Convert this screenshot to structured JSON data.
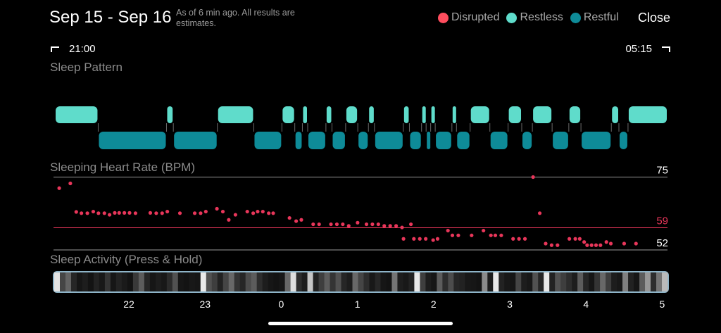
{
  "header": {
    "title": "Sep 15 - Sep 16",
    "subtitle": "As of 6 min ago. All results are estimates.",
    "close_label": "Close"
  },
  "legend": [
    {
      "label": "Disrupted",
      "color": "#ff4d5e"
    },
    {
      "label": "Restless",
      "color": "#5fdccb"
    },
    {
      "label": "Restful",
      "color": "#0e8b98"
    }
  ],
  "time_range": {
    "start": "21:00",
    "end": "05:15"
  },
  "sections": {
    "pattern": "Sleep Pattern",
    "heart_rate": "Sleeping Heart Rate (BPM)",
    "activity": "Sleep Activity (Press & Hold)"
  },
  "colors": {
    "restless": "#5fdccb",
    "restful": "#0e8b98",
    "disrupted": "#ff4d5e",
    "hr_dot": "#e8365a"
  },
  "chart_data": [
    {
      "type": "timeline",
      "name": "Sleep Pattern",
      "x_unit": "hours since midnight (negative = before midnight)",
      "xlim": [
        -2.85,
        5.22
      ],
      "segments": [
        {
          "state": "restless",
          "start": -2.85,
          "end": -2.28
        },
        {
          "state": "restful",
          "start": -2.28,
          "end": -1.38
        },
        {
          "state": "restless",
          "start": -1.38,
          "end": -1.29
        },
        {
          "state": "restful",
          "start": -1.29,
          "end": -0.71
        },
        {
          "state": "restless",
          "start": -0.71,
          "end": -0.23
        },
        {
          "state": "restful",
          "start": -0.23,
          "end": 0.14
        },
        {
          "state": "restless",
          "start": 0.14,
          "end": 0.31
        },
        {
          "state": "restful",
          "start": 0.31,
          "end": 0.41
        },
        {
          "state": "restless",
          "start": 0.41,
          "end": 0.48
        },
        {
          "state": "restful",
          "start": 0.48,
          "end": 0.72
        },
        {
          "state": "restless",
          "start": 0.72,
          "end": 0.8
        },
        {
          "state": "restful",
          "start": 0.8,
          "end": 0.98
        },
        {
          "state": "restless",
          "start": 0.98,
          "end": 1.14
        },
        {
          "state": "restful",
          "start": 1.14,
          "end": 1.28
        },
        {
          "state": "restless",
          "start": 1.28,
          "end": 1.36
        },
        {
          "state": "restful",
          "start": 1.36,
          "end": 1.74
        },
        {
          "state": "restless",
          "start": 1.74,
          "end": 1.82
        },
        {
          "state": "restful",
          "start": 1.82,
          "end": 1.98
        },
        {
          "state": "restless",
          "start": 1.98,
          "end": 2.04
        },
        {
          "state": "restful",
          "start": 2.04,
          "end": 2.1
        },
        {
          "state": "restless",
          "start": 2.1,
          "end": 2.16
        },
        {
          "state": "restful",
          "start": 2.16,
          "end": 2.38
        },
        {
          "state": "restless",
          "start": 2.38,
          "end": 2.44
        },
        {
          "state": "restful",
          "start": 2.44,
          "end": 2.62
        },
        {
          "state": "restless",
          "start": 2.62,
          "end": 2.88
        },
        {
          "state": "restful",
          "start": 2.88,
          "end": 3.12
        },
        {
          "state": "restless",
          "start": 3.12,
          "end": 3.3
        },
        {
          "state": "restful",
          "start": 3.3,
          "end": 3.44
        },
        {
          "state": "restless",
          "start": 3.44,
          "end": 3.7
        },
        {
          "state": "restful",
          "start": 3.7,
          "end": 3.92
        },
        {
          "state": "restless",
          "start": 3.92,
          "end": 4.08
        },
        {
          "state": "restful",
          "start": 4.08,
          "end": 4.48
        },
        {
          "state": "restless",
          "start": 4.48,
          "end": 4.58
        },
        {
          "state": "restful",
          "start": 4.58,
          "end": 4.7
        },
        {
          "state": "restless",
          "start": 4.7,
          "end": 5.22
        }
      ]
    },
    {
      "type": "scatter",
      "name": "Sleeping Heart Rate (BPM)",
      "x_unit": "hours since midnight",
      "xlim": [
        -2.95,
        5.0
      ],
      "ylim": [
        50,
        78
      ],
      "reference_lines": [
        {
          "value": 75,
          "label": "75",
          "color": "#9a9a9a"
        },
        {
          "value": 59,
          "label": "59",
          "color": "#e8365a"
        },
        {
          "value": 52,
          "label": "52",
          "color": "#9a9a9a"
        }
      ],
      "points": [
        [
          -2.93,
          71.5
        ],
        [
          -2.78,
          73
        ],
        [
          -2.7,
          64
        ],
        [
          -2.63,
          63.6
        ],
        [
          -2.55,
          63.6
        ],
        [
          -2.47,
          64.1
        ],
        [
          -2.4,
          63.6
        ],
        [
          -2.32,
          63.6
        ],
        [
          -2.25,
          63.1
        ],
        [
          -2.18,
          63.7
        ],
        [
          -2.12,
          63.7
        ],
        [
          -2.05,
          63.7
        ],
        [
          -1.98,
          63.7
        ],
        [
          -1.9,
          63.6
        ],
        [
          -1.7,
          63.7
        ],
        [
          -1.62,
          63.6
        ],
        [
          -1.54,
          63.6
        ],
        [
          -1.47,
          64.1
        ],
        [
          -1.3,
          63.6
        ],
        [
          -1.1,
          63.6
        ],
        [
          -1.02,
          63.6
        ],
        [
          -0.95,
          64.1
        ],
        [
          -0.8,
          65
        ],
        [
          -0.72,
          64.1
        ],
        [
          -0.64,
          61.5
        ],
        [
          -0.55,
          63.1
        ],
        [
          -0.39,
          64.1
        ],
        [
          -0.31,
          63.6
        ],
        [
          -0.25,
          64.1
        ],
        [
          -0.18,
          64.1
        ],
        [
          -0.1,
          63.6
        ],
        [
          -0.04,
          63.6
        ],
        [
          0.18,
          62.1
        ],
        [
          0.27,
          61.1
        ],
        [
          0.34,
          61.5
        ],
        [
          0.5,
          60.1
        ],
        [
          0.58,
          60.1
        ],
        [
          0.74,
          60.1
        ],
        [
          0.82,
          60.1
        ],
        [
          0.9,
          60.1
        ],
        [
          0.98,
          59.6
        ],
        [
          1.1,
          60.6
        ],
        [
          1.22,
          60.1
        ],
        [
          1.3,
          60.1
        ],
        [
          1.38,
          60.1
        ],
        [
          1.46,
          59.6
        ],
        [
          1.54,
          59.6
        ],
        [
          1.62,
          59.6
        ],
        [
          1.7,
          59.1
        ],
        [
          1.82,
          60.1
        ],
        [
          1.72,
          55.5
        ],
        [
          1.86,
          55.5
        ],
        [
          1.94,
          55.5
        ],
        [
          2.02,
          55.5
        ],
        [
          2.12,
          55.1
        ],
        [
          2.18,
          55.5
        ],
        [
          2.32,
          58.1
        ],
        [
          2.38,
          56.6
        ],
        [
          2.46,
          56.6
        ],
        [
          2.64,
          56.6
        ],
        [
          2.8,
          58.1
        ],
        [
          2.9,
          56.6
        ],
        [
          2.96,
          56.6
        ],
        [
          3.04,
          56.6
        ],
        [
          3.2,
          55.5
        ],
        [
          3.28,
          55.5
        ],
        [
          3.36,
          55.5
        ],
        [
          3.47,
          75
        ],
        [
          3.56,
          63.6
        ],
        [
          3.64,
          54.0
        ],
        [
          3.72,
          53.5
        ],
        [
          3.8,
          53.5
        ],
        [
          3.96,
          55.5
        ],
        [
          4.04,
          55.5
        ],
        [
          4.1,
          55.5
        ],
        [
          4.16,
          54.5
        ],
        [
          4.2,
          53.5
        ],
        [
          4.26,
          53.5
        ],
        [
          4.32,
          53.5
        ],
        [
          4.38,
          53.5
        ],
        [
          4.46,
          54.5
        ],
        [
          4.52,
          54.0
        ],
        [
          4.7,
          54.0
        ],
        [
          4.86,
          54.0
        ]
      ]
    },
    {
      "type": "heatmap",
      "name": "Sleep Activity (Press & Hold)",
      "x_unit": "hours since midnight",
      "xlim": [
        -2.98,
        5.07
      ],
      "x_ticks": [
        "22",
        "23",
        "0",
        "1",
        "2",
        "3",
        "4",
        "5"
      ],
      "x_tick_values": [
        -2,
        -1,
        0,
        1,
        2,
        3,
        4,
        5
      ],
      "intensity_samples": [
        0.92,
        0.25,
        0.38,
        0.12,
        0.05,
        0.08,
        0.04,
        0.1,
        0.06,
        0.18,
        0.05,
        0.1,
        0.07,
        0.04,
        0.2,
        0.35,
        0.12,
        0.05,
        0.08,
        0.06,
        0.14,
        0.3,
        0.05,
        0.04,
        0.06,
        0.05,
        0.95,
        0.3,
        0.22,
        0.1,
        0.25,
        0.4,
        0.18,
        0.12,
        0.28,
        0.35,
        0.15,
        0.08,
        0.05,
        0.04,
        0.06,
        0.4,
        0.9,
        0.15,
        0.08,
        0.8,
        0.1,
        0.22,
        0.35,
        0.18,
        0.3,
        0.12,
        0.08,
        0.4,
        0.25,
        0.15,
        0.06,
        0.12,
        0.05,
        0.04,
        0.45,
        0.08,
        0.06,
        0.1,
        0.95,
        0.22,
        0.08,
        0.05,
        0.35,
        0.15,
        0.28,
        0.12,
        0.1,
        0.06,
        0.05,
        0.04,
        0.55,
        0.08,
        0.95,
        0.1,
        0.06,
        0.05,
        0.25,
        0.08,
        0.06,
        0.3,
        0.12,
        0.95,
        0.1,
        0.3,
        0.22,
        0.15,
        0.08,
        0.35,
        0.12,
        0.05,
        0.18,
        0.4,
        0.22,
        0.08,
        0.06,
        0.5,
        0.1,
        0.05,
        0.35,
        0.6,
        0.15,
        0.45,
        0.75
      ]
    }
  ]
}
